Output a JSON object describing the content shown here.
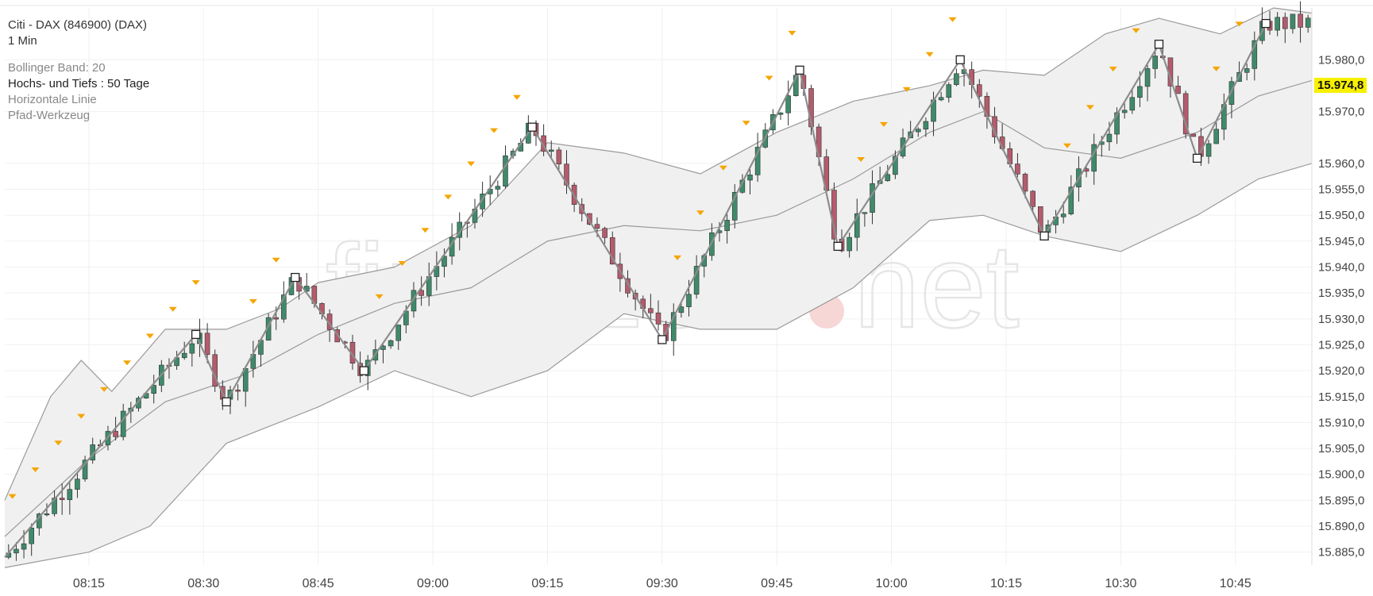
{
  "chart": {
    "title": "Citi - DAX (846900) (DAX)",
    "interval": "1 Min",
    "watermark_text": "finanzen",
    "watermark_suffix": "net",
    "indicators": [
      {
        "label": "Bollinger Band: 20",
        "active": false
      },
      {
        "label": "Hochs- und Tiefs : 50 Tage",
        "active": true
      },
      {
        "label": "Horizontale Linie",
        "active": false
      },
      {
        "label": "Pfad-Werkzeug",
        "active": false
      }
    ],
    "last_price_label": "15.974,8",
    "colors": {
      "up": "#3f8a6b",
      "down": "#b45b6c",
      "band": "#f0f0f0",
      "band_line": "#9a9a9a",
      "zigzag": "#8c8c8c",
      "marker": "#f5a500",
      "last": "#f7f000"
    }
  },
  "chart_data": {
    "type": "candlestick",
    "y_ticks": [
      "15.885,0",
      "15.890,0",
      "15.895,0",
      "15.900,0",
      "15.905,0",
      "15.910,0",
      "15.915,0",
      "15.920,0",
      "15.925,0",
      "15.930,0",
      "15.935,0",
      "15.940,0",
      "15.945,0",
      "15.950,0",
      "15.955,0",
      "15.960,0",
      "15.970,0",
      "15.980,0"
    ],
    "y_tick_values": [
      15885,
      15890,
      15895,
      15900,
      15905,
      15910,
      15915,
      15920,
      15925,
      15930,
      15935,
      15940,
      15945,
      15950,
      15955,
      15960,
      15970,
      15980
    ],
    "x_ticks": [
      "08:15",
      "08:30",
      "08:45",
      "09:00",
      "09:15",
      "09:30",
      "09:45",
      "10:00",
      "10:15",
      "10:30",
      "10:45"
    ],
    "x_tick_minutes": [
      495,
      510,
      525,
      540,
      555,
      570,
      585,
      600,
      615,
      630,
      645
    ],
    "x_start_minute": 484,
    "x_end_minute": 655,
    "ylim": [
      15882.5,
      15990
    ],
    "last_price": 15974.8,
    "zigzag": [
      {
        "t": 484,
        "v": 15884
      },
      {
        "t": 509,
        "v": 15927
      },
      {
        "t": 513,
        "v": 15914
      },
      {
        "t": 522,
        "v": 15938
      },
      {
        "t": 531,
        "v": 15920
      },
      {
        "t": 553,
        "v": 15967
      },
      {
        "t": 570,
        "v": 15926
      },
      {
        "t": 588,
        "v": 15978
      },
      {
        "t": 593,
        "v": 15944
      },
      {
        "t": 609,
        "v": 15980
      },
      {
        "t": 620,
        "v": 15946
      },
      {
        "t": 635,
        "v": 15983
      },
      {
        "t": 640,
        "v": 15961
      },
      {
        "t": 649,
        "v": 15987
      }
    ],
    "band_mid": [
      {
        "t": 484,
        "v": 15888
      },
      {
        "t": 495,
        "v": 15903
      },
      {
        "t": 505,
        "v": 15914
      },
      {
        "t": 515,
        "v": 15919
      },
      {
        "t": 525,
        "v": 15927
      },
      {
        "t": 535,
        "v": 15933
      },
      {
        "t": 545,
        "v": 15936
      },
      {
        "t": 555,
        "v": 15945
      },
      {
        "t": 565,
        "v": 15948
      },
      {
        "t": 575,
        "v": 15947
      },
      {
        "t": 585,
        "v": 15950
      },
      {
        "t": 595,
        "v": 15957
      },
      {
        "t": 605,
        "v": 15966
      },
      {
        "t": 612,
        "v": 15970
      },
      {
        "t": 620,
        "v": 15963
      },
      {
        "t": 630,
        "v": 15961
      },
      {
        "t": 640,
        "v": 15966
      },
      {
        "t": 648,
        "v": 15973
      },
      {
        "t": 655,
        "v": 15976
      }
    ],
    "band_upper": [
      {
        "t": 484,
        "v": 15895
      },
      {
        "t": 490,
        "v": 15915
      },
      {
        "t": 494,
        "v": 15922
      },
      {
        "t": 498,
        "v": 15916
      },
      {
        "t": 505,
        "v": 15928
      },
      {
        "t": 513,
        "v": 15928
      },
      {
        "t": 520,
        "v": 15932
      },
      {
        "t": 525,
        "v": 15937
      },
      {
        "t": 535,
        "v": 15940
      },
      {
        "t": 545,
        "v": 15948
      },
      {
        "t": 555,
        "v": 15964
      },
      {
        "t": 565,
        "v": 15962
      },
      {
        "t": 575,
        "v": 15958
      },
      {
        "t": 585,
        "v": 15966
      },
      {
        "t": 595,
        "v": 15972
      },
      {
        "t": 605,
        "v": 15975
      },
      {
        "t": 612,
        "v": 15978
      },
      {
        "t": 620,
        "v": 15977
      },
      {
        "t": 628,
        "v": 15985
      },
      {
        "t": 635,
        "v": 15988
      },
      {
        "t": 643,
        "v": 15985
      },
      {
        "t": 650,
        "v": 15990
      },
      {
        "t": 655,
        "v": 15989
      }
    ],
    "band_lower": [
      {
        "t": 484,
        "v": 15882
      },
      {
        "t": 495,
        "v": 15885
      },
      {
        "t": 503,
        "v": 15890
      },
      {
        "t": 513,
        "v": 15906
      },
      {
        "t": 525,
        "v": 15913
      },
      {
        "t": 535,
        "v": 15920
      },
      {
        "t": 545,
        "v": 15915
      },
      {
        "t": 555,
        "v": 15920
      },
      {
        "t": 565,
        "v": 15931
      },
      {
        "t": 575,
        "v": 15928
      },
      {
        "t": 585,
        "v": 15928
      },
      {
        "t": 595,
        "v": 15936
      },
      {
        "t": 605,
        "v": 15949
      },
      {
        "t": 612,
        "v": 15950
      },
      {
        "t": 620,
        "v": 15946
      },
      {
        "t": 630,
        "v": 15943
      },
      {
        "t": 640,
        "v": 15950
      },
      {
        "t": 648,
        "v": 15957
      },
      {
        "t": 655,
        "v": 15960
      }
    ],
    "trend_start": 15897,
    "trend_end": 15974,
    "noise_seed": 7
  }
}
